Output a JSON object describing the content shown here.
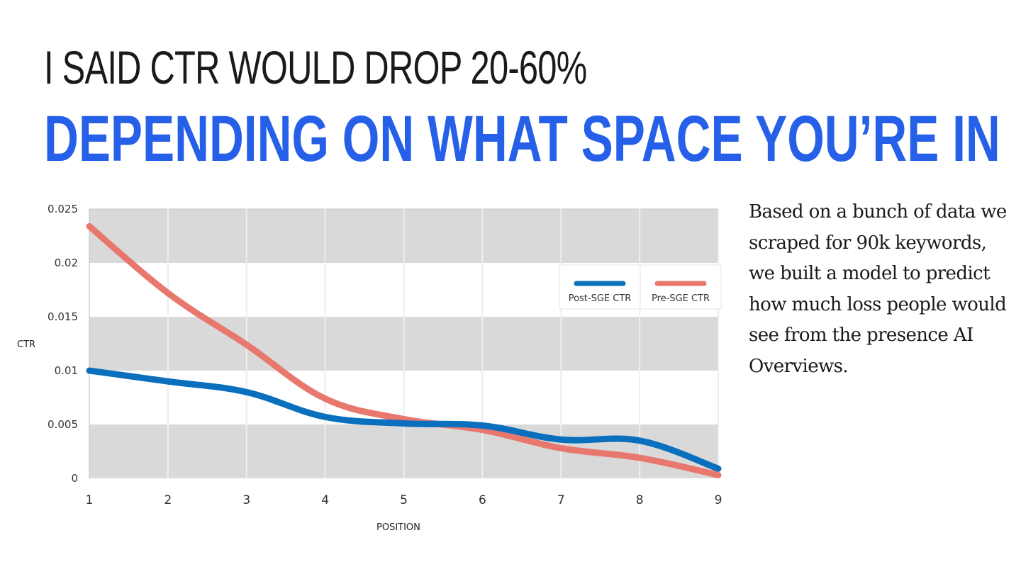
{
  "slide": {
    "headline": "I SAID CTR WOULD DROP 20-60%",
    "subheadline": "DEPENDING ON WHAT SPACE YOU’RE IN",
    "body_text": "Based on a bunch of data we scraped for 90k keywords, we built a model to predict how much loss people would see from the presence AI Overviews."
  },
  "colors": {
    "headline": "#1a1a1a",
    "subheadline": "#2660e8",
    "band_dark": "#d9d9d9",
    "band_light": "#ffffff",
    "post_sge": "#0a6fbd",
    "pre_sge": "#e8786d"
  },
  "chart_data": {
    "type": "line",
    "title": "",
    "xlabel": "POSITION",
    "ylabel": "CTR",
    "x": [
      1,
      2,
      3,
      4,
      5,
      6,
      7,
      8,
      9
    ],
    "x_ticks": [
      "1",
      "2",
      "3",
      "4",
      "5",
      "6",
      "7",
      "8",
      "9"
    ],
    "y_ticks": [
      "0",
      "0.005",
      "0.01",
      "0.015",
      "0.02",
      "0.025"
    ],
    "y_tick_values": [
      0,
      0.005,
      0.01,
      0.015,
      0.02,
      0.025
    ],
    "xlim": [
      1,
      9
    ],
    "ylim": [
      0,
      0.025
    ],
    "grid": true,
    "smooth": true,
    "legend_position": "top-right",
    "series": [
      {
        "name": "Post-SGE CTR",
        "color": "#0a6fbd",
        "values": [
          0.01,
          0.009,
          0.008,
          0.0057,
          0.0051,
          0.0049,
          0.0036,
          0.0035,
          0.0009
        ]
      },
      {
        "name": "Pre-SGE CTR",
        "color": "#e8786d",
        "values": [
          0.0234,
          0.0172,
          0.0124,
          0.0074,
          0.0055,
          0.0045,
          0.0028,
          0.0019,
          0.0003
        ]
      }
    ]
  }
}
